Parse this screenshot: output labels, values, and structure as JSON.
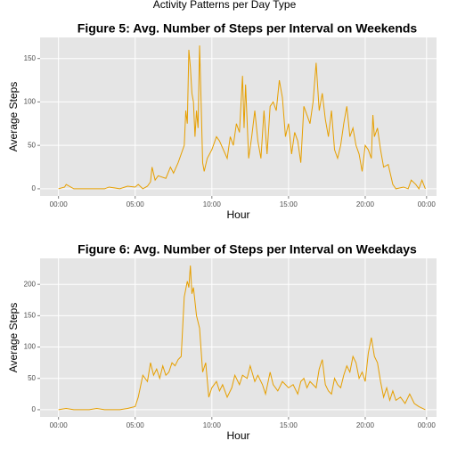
{
  "title": "Activity Patterns per Day Type",
  "chart_data": [
    {
      "type": "line",
      "title": "Figure 5: Avg. Number of Steps per Interval on Weekends",
      "x_label": "Hour",
      "y_label": "Average Steps",
      "xlim": [
        -1.2,
        24.65
      ],
      "ylim": [
        -8.3,
        174.3
      ],
      "xticks": [
        {
          "value": 0,
          "label": "00:00"
        },
        {
          "value": 5,
          "label": "05:00"
        },
        {
          "value": 10,
          "label": "10:00"
        },
        {
          "value": 15,
          "label": "15:00"
        },
        {
          "value": 20,
          "label": "20:00"
        },
        {
          "value": 24,
          "label": "00:00"
        }
      ],
      "yticks": [
        0,
        50,
        100,
        150
      ],
      "grid": true,
      "series": [
        {
          "name": "weekend",
          "color": "#E69F00",
          "x": [
            0,
            0.4,
            0.5,
            1,
            2,
            3,
            3.3,
            4,
            4.5,
            5,
            5.2,
            5.5,
            5.8,
            6.0,
            6.1,
            6.3,
            6.5,
            7,
            7.3,
            7.5,
            7.8,
            8.0,
            8.2,
            8.3,
            8.4,
            8.5,
            8.6,
            8.7,
            8.8,
            8.9,
            9.0,
            9.1,
            9.2,
            9.3,
            9.4,
            9.5,
            9.7,
            10.0,
            10.3,
            10.5,
            11,
            11.2,
            11.4,
            11.6,
            11.8,
            12.0,
            12.1,
            12.2,
            12.4,
            12.6,
            12.8,
            13.0,
            13.2,
            13.4,
            13.6,
            13.8,
            14,
            14.2,
            14.4,
            14.6,
            14.8,
            15.0,
            15.2,
            15.4,
            15.6,
            15.8,
            16.0,
            16.2,
            16.4,
            16.6,
            16.8,
            17.0,
            17.2,
            17.4,
            17.6,
            17.8,
            18.0,
            18.2,
            18.4,
            18.6,
            18.8,
            19.0,
            19.2,
            19.4,
            19.6,
            19.8,
            20.0,
            20.2,
            20.4,
            20.5,
            20.6,
            20.8,
            21.0,
            21.2,
            21.5,
            21.8,
            22,
            22.5,
            22.8,
            23.0,
            23.3,
            23.5,
            23.7,
            23.92
          ],
          "values": [
            0,
            2,
            5,
            0,
            0,
            0,
            2,
            0,
            3,
            2,
            5,
            0,
            3,
            8,
            25,
            10,
            15,
            12,
            25,
            18,
            30,
            40,
            50,
            90,
            75,
            160,
            140,
            110,
            100,
            60,
            90,
            70,
            165,
            100,
            30,
            20,
            35,
            45,
            60,
            55,
            35,
            60,
            50,
            75,
            65,
            130,
            70,
            120,
            35,
            60,
            90,
            55,
            35,
            90,
            40,
            95,
            100,
            90,
            125,
            105,
            60,
            75,
            40,
            65,
            55,
            30,
            95,
            85,
            75,
            100,
            145,
            90,
            110,
            80,
            60,
            90,
            45,
            35,
            50,
            75,
            95,
            60,
            70,
            50,
            40,
            20,
            50,
            45,
            35,
            85,
            60,
            70,
            45,
            25,
            28,
            5,
            0,
            2,
            0,
            10,
            5,
            0,
            10,
            0
          ]
        }
      ]
    },
    {
      "type": "line",
      "title": "Figure 6: Avg. Number of Steps per Interval on Weekdays",
      "x_label": "Hour",
      "y_label": "Average Steps",
      "xlim": [
        -1.2,
        24.65
      ],
      "ylim": [
        -11.5,
        241.5
      ],
      "xticks": [
        {
          "value": 0,
          "label": "00:00"
        },
        {
          "value": 5,
          "label": "05:00"
        },
        {
          "value": 10,
          "label": "10:00"
        },
        {
          "value": 15,
          "label": "15:00"
        },
        {
          "value": 20,
          "label": "20:00"
        },
        {
          "value": 24,
          "label": "00:00"
        }
      ],
      "yticks": [
        0,
        50,
        100,
        150,
        200
      ],
      "grid": true,
      "series": [
        {
          "name": "weekday",
          "color": "#E69F00",
          "x": [
            0,
            0.5,
            1,
            2,
            2.5,
            3,
            4,
            4.5,
            5,
            5.2,
            5.5,
            5.8,
            6.0,
            6.2,
            6.4,
            6.6,
            6.8,
            7.0,
            7.2,
            7.4,
            7.6,
            7.8,
            8.0,
            8.2,
            8.4,
            8.5,
            8.6,
            8.7,
            8.8,
            9.0,
            9.2,
            9.4,
            9.6,
            9.8,
            10.0,
            10.3,
            10.5,
            10.7,
            11.0,
            11.3,
            11.5,
            11.8,
            12.0,
            12.3,
            12.5,
            12.8,
            13.0,
            13.3,
            13.5,
            13.8,
            14.0,
            14.3,
            14.6,
            15.0,
            15.3,
            15.6,
            15.8,
            16.0,
            16.2,
            16.4,
            16.6,
            16.8,
            17.0,
            17.2,
            17.4,
            17.6,
            17.8,
            18.0,
            18.2,
            18.4,
            18.6,
            18.8,
            19.0,
            19.2,
            19.4,
            19.6,
            19.8,
            20.0,
            20.2,
            20.4,
            20.6,
            20.8,
            21.0,
            21.2,
            21.4,
            21.6,
            21.8,
            22.0,
            22.3,
            22.6,
            22.9,
            23.2,
            23.5,
            23.92
          ],
          "values": [
            0,
            2,
            0,
            0,
            2,
            0,
            0,
            2,
            5,
            20,
            55,
            45,
            75,
            55,
            65,
            50,
            70,
            55,
            60,
            75,
            70,
            80,
            85,
            180,
            205,
            195,
            230,
            185,
            195,
            150,
            130,
            60,
            75,
            20,
            35,
            45,
            30,
            40,
            20,
            35,
            55,
            40,
            55,
            50,
            70,
            45,
            55,
            40,
            25,
            60,
            40,
            30,
            45,
            35,
            40,
            25,
            45,
            50,
            35,
            45,
            40,
            35,
            65,
            80,
            40,
            30,
            25,
            50,
            40,
            35,
            55,
            70,
            60,
            85,
            75,
            50,
            60,
            45,
            90,
            115,
            85,
            75,
            45,
            20,
            35,
            15,
            30,
            15,
            20,
            10,
            25,
            10,
            5,
            0
          ]
        }
      ]
    }
  ]
}
